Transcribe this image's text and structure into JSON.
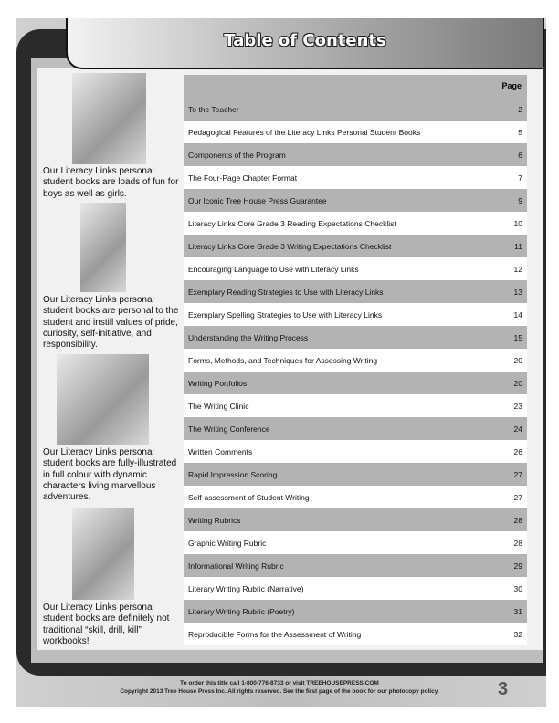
{
  "header": {
    "title": "Table of Contents"
  },
  "toc": {
    "page_header": "Page",
    "entries": [
      {
        "title": "To the Teacher",
        "page": "2"
      },
      {
        "title": "Pedagogical Features of the Literacy Links Personal Student Books",
        "page": "5"
      },
      {
        "title": "Components of the Program",
        "page": "6"
      },
      {
        "title": "The Four-Page Chapter Format",
        "page": "7"
      },
      {
        "title": "Our Iconic Tree House Press Guarantee",
        "page": "9"
      },
      {
        "title": "Literacy Links Core Grade 3 Reading Expectations Checklist",
        "page": "10"
      },
      {
        "title": "Literacy Links Core Grade 3 Writing Expectations Checklist",
        "page": "11"
      },
      {
        "title": "Encouraging Language to Use with Literacy Links",
        "page": "12"
      },
      {
        "title": "Exemplary Reading Strategies to Use with Literacy Links",
        "page": "13"
      },
      {
        "title": "Exemplary Spelling Strategies to Use with Literacy Links",
        "page": "14"
      },
      {
        "title": "Understanding the Writing Process",
        "page": "15"
      },
      {
        "title": "Forms, Methods, and Techniques for Assessing Writing",
        "page": "20"
      },
      {
        "title": "Writing Portfolios",
        "page": "20"
      },
      {
        "title": "The Writing Clinic",
        "page": "23"
      },
      {
        "title": "The Writing Conference",
        "page": "24"
      },
      {
        "title": "Written Comments",
        "page": "26"
      },
      {
        "title": "Rapid Impression Scoring",
        "page": "27"
      },
      {
        "title": "Self-assessment of Student Writing",
        "page": "27"
      },
      {
        "title": "Writing Rubrics",
        "page": "28"
      },
      {
        "title": "Graphic Writing Rubric",
        "page": "28"
      },
      {
        "title": "Informational Writing Rubric",
        "page": "29"
      },
      {
        "title": "Literary Writing Rubric (Narrative)",
        "page": "30"
      },
      {
        "title": "Literary Writing Rubric (Poetry)",
        "page": "31"
      },
      {
        "title": "Reproducible Forms for the Assessment of Writing",
        "page": "32"
      }
    ]
  },
  "sidebar": {
    "captions": [
      "Our Literacy Links personal student books are loads of fun for boys as well as girls.",
      "Our Literacy Links personal student books are personal to the student and instill values of pride, curiosity, self-initiative, and responsibility.",
      "Our Literacy Links personal student books are fully-illustrated in full colour with dynamic characters living marvellous adventures.",
      "Our Literacy Links personal student books are definitely not traditional “skill, drill, kill” workbooks!"
    ]
  },
  "footer": {
    "order_line": "To order this title call 1-800-776-8733 or visit TREEHOUSEPRESS.COM",
    "copyright": "Copyright 2013 Tree House Press Inc. All rights reserved. See the first page of the book for our photocopy policy.",
    "page_number": "3"
  }
}
